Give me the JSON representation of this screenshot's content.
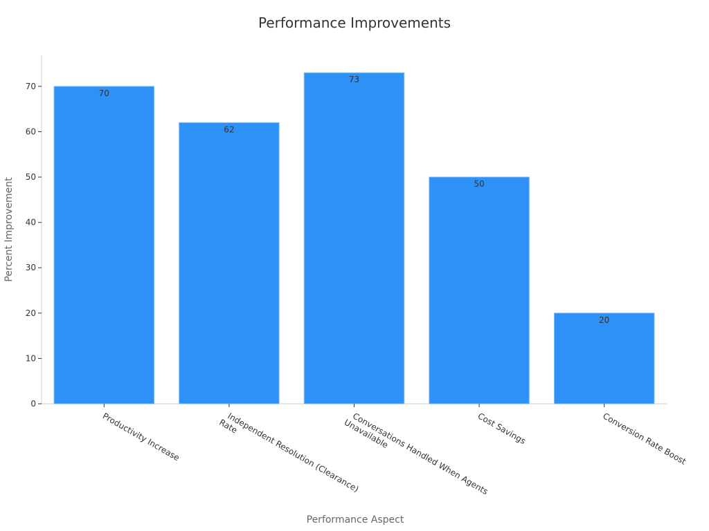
{
  "chart_data": {
    "type": "bar",
    "title": "Performance Improvements",
    "x_label": "Performance Aspect",
    "y_label": "Percent Improvement",
    "categories": [
      "Productivity Increase",
      "Independent Resolution (Clearance) Rate",
      "Conversations Handled When Agents Unavailable",
      "Cost Savings",
      "Conversion Rate Boost"
    ],
    "values": [
      70,
      62,
      73,
      50,
      20
    ],
    "color": "#2e91f7",
    "ylim": [
      0,
      77
    ],
    "yticks": [
      0,
      10,
      20,
      30,
      40,
      50,
      60,
      70
    ],
    "grid": false
  }
}
